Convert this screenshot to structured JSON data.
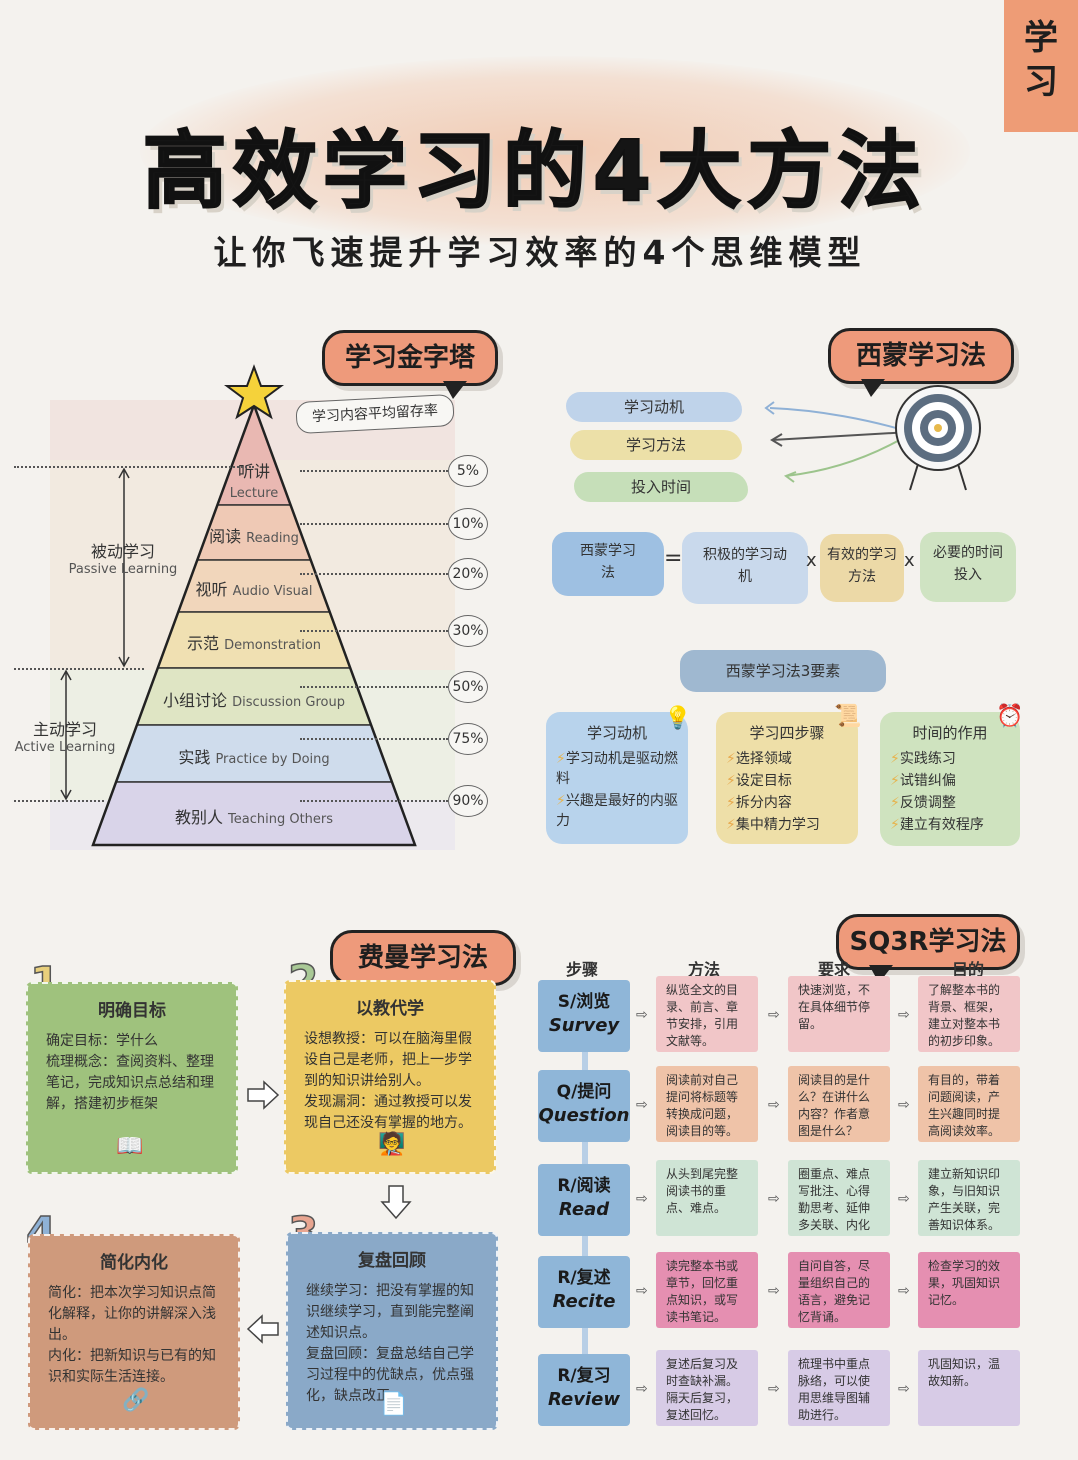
{
  "corner_tag": "学\n习",
  "title": "高效学习的4大方法",
  "subtitle": "让你飞速提升学习效率的4个思维模型",
  "pyramid": {
    "bubble": "学习金字塔",
    "caption": "学习内容平均留存率",
    "levels": [
      {
        "cn": "听讲",
        "en": "Lecture",
        "pct": "5%",
        "color": "#e9b8b2"
      },
      {
        "cn": "阅读",
        "en": "Reading",
        "pct": "10%",
        "color": "#efc9b5"
      },
      {
        "cn": "视听",
        "en": "Audio Visual",
        "pct": "20%",
        "color": "#f1d6bb"
      },
      {
        "cn": "示范",
        "en": "Demonstration",
        "pct": "30%",
        "color": "#f0e0b2"
      },
      {
        "cn": "小组讨论",
        "en": "Discussion Group",
        "pct": "50%",
        "color": "#dfe5c4"
      },
      {
        "cn": "实践",
        "en": "Practice by Doing",
        "pct": "75%",
        "color": "#cfdcec"
      },
      {
        "cn": "教别人",
        "en": "Teaching Others",
        "pct": "90%",
        "color": "#d9d4e9"
      }
    ],
    "passive": {
      "cn": "被动学习",
      "en": "Passive Learning"
    },
    "active": {
      "cn": "主动学习",
      "en": "Active Learning"
    }
  },
  "simon": {
    "bubble": "西蒙学习法",
    "inputs": [
      "学习动机",
      "学习方法",
      "投入时间"
    ],
    "formula": {
      "left": "西蒙学习法",
      "eq": "=",
      "times": "x",
      "parts": [
        "积极的学习动机",
        "有效的学习方法",
        "必要的时间投入"
      ]
    },
    "elements_title": "西蒙学习法3要素",
    "elements": [
      {
        "title": "学习动机",
        "items": [
          "学习动机是驱动燃料",
          "兴趣是最好的内驱力"
        ]
      },
      {
        "title": "学习四步骤",
        "items": [
          "选择领域",
          "设定目标",
          "拆分内容",
          "集中精力学习"
        ]
      },
      {
        "title": "时间的作用",
        "items": [
          "实践练习",
          "试错纠偏",
          "反馈调整",
          "建立有效程序"
        ]
      }
    ]
  },
  "feynman": {
    "bubble": "费曼学习法",
    "cards": [
      {
        "num": "1",
        "title": "明确目标",
        "body": "确定目标：学什么\n梳理概念：查阅资料、整理笔记，完成知识点总结和理解，搭建初步框架"
      },
      {
        "num": "2",
        "title": "以教代学",
        "body": "设想教授：可以在脑海里假设自己是老师，把上一步学到的知识讲给别人。\n发现漏洞：通过教授可以发现自己还没有掌握的地方。"
      },
      {
        "num": "3",
        "title": "复盘回顾",
        "body": "继续学习：把没有掌握的知识继续学习，直到能完整阐述知识点。\n复盘回顾：复盘总结自己学习过程中的优缺点，优点强化，缺点改正。"
      },
      {
        "num": "4",
        "title": "简化内化",
        "body": "简化：把本次学习知识点简化解释，让你的讲解深入浅出。\n内化：把新知识与已有的知识和实际生活连接。"
      }
    ]
  },
  "sq3r": {
    "bubble": "SQ3R学习法",
    "headers": [
      "步骤",
      "方法",
      "要求",
      "目的"
    ],
    "rows": [
      {
        "cn": "S/浏览",
        "en": "Survey",
        "method": "纵览全文的目录、前言、章节安排，引用文献等。",
        "req": "快速浏览，不在具体细节停留。",
        "goal": "了解整本书的背景、框架，建立对整本书的初步印象。"
      },
      {
        "cn": "Q/提问",
        "en": "Question",
        "method": "阅读前对自己提问将标题等转换成问题，阅读目的等。",
        "req": "阅读目的是什么？在讲什么内容？作者意图是什么？",
        "goal": "有目的，带着问题阅读，产生兴趣同时提高阅读效率。"
      },
      {
        "cn": "R/阅读",
        "en": "Read",
        "method": "从头到尾完整阅读书的重点、难点。",
        "req": "圈重点、难点写批注、心得勤思考、延伸多关联、内化",
        "goal": "建立新知识印象，与旧知识产生关联，完善知识体系。"
      },
      {
        "cn": "R/复述",
        "en": "Recite",
        "method": "读完整本书或章节，回忆重点知识，或写读书笔记。",
        "req": "自问自答，尽量组织自己的语言，避免记忆背诵。",
        "goal": "检查学习的效果，巩固知识记忆。"
      },
      {
        "cn": "R/复习",
        "en": "Review",
        "method": "复述后复习及时查缺补漏。隔天后复习，复述回忆。",
        "req": "梳理书中重点脉络，可以使用思维导图辅助进行。",
        "goal": "巩固知识，温故知新。"
      }
    ]
  }
}
